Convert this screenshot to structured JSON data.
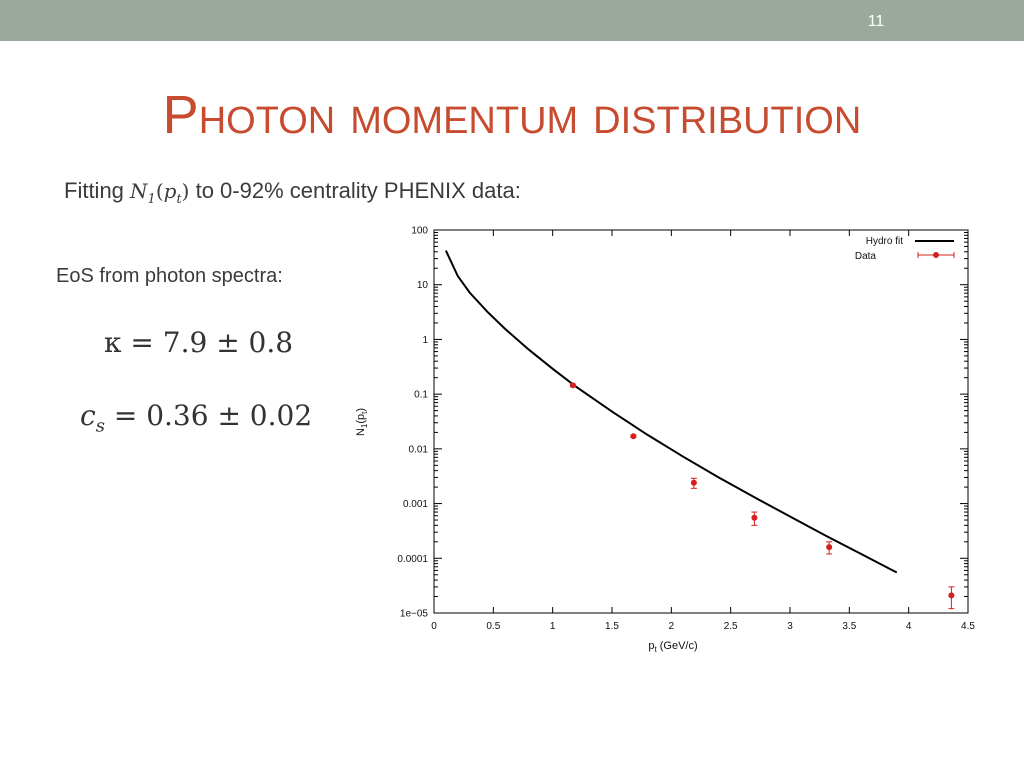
{
  "slide_number": "11",
  "title": "Photon momentum distribution",
  "fit_text_before": "Fitting ",
  "fit_math_N": "N",
  "fit_math_N_sub": "1",
  "fit_math_p": "p",
  "fit_math_p_sub": "t",
  "fit_text_after": " to 0-92% centrality PHENIX data:",
  "eos_label": "EoS from photon spectra:",
  "kappa_eq": "κ = 7.9 ± 0.8",
  "cs_symbol": "c",
  "cs_sub": "s",
  "cs_rest": " = 0.36 ± 0.02",
  "colors": {
    "title": "#c74b2f",
    "topbar": "#9aa99b",
    "data_points": "#d42020",
    "fit_line": "#000000"
  },
  "chart_data": {
    "type": "scatter",
    "log_y": true,
    "xlim": [
      0,
      4.5
    ],
    "ylim": [
      1e-05,
      100
    ],
    "xticks": [
      "0",
      "0.5",
      "1",
      "1.5",
      "2",
      "2.5",
      "3",
      "3.5",
      "4",
      "4.5"
    ],
    "yticks": [
      "100",
      "10",
      "1",
      "0.1",
      "0.01",
      "0.001",
      "0.0001",
      "1e−05"
    ],
    "xlabel": "p",
    "xlabel_sub": "t",
    "xlabel_unit": " (GeV/c)",
    "ylabel": "N",
    "ylabel_sub": "1",
    "ylabel_arg": "(p",
    "ylabel_arg_sub": "t",
    "ylabel_close": ")",
    "legend_position": "top-right",
    "series": [
      {
        "name": "Hydro fit",
        "kind": "line",
        "x": [
          0.1,
          0.2,
          0.3,
          0.45,
          0.6,
          0.8,
          1.0,
          1.2,
          1.5,
          1.8,
          2.1,
          2.4,
          2.7,
          3.0,
          3.3,
          3.6,
          3.9
        ],
        "y": [
          42,
          14.5,
          7.2,
          3.2,
          1.55,
          0.65,
          0.29,
          0.135,
          0.048,
          0.018,
          0.0072,
          0.003,
          0.0013,
          0.00058,
          0.00026,
          0.00012,
          5.5e-05
        ]
      },
      {
        "name": "Data",
        "kind": "points",
        "x": [
          1.17,
          1.68,
          2.19,
          2.7,
          3.33,
          4.36
        ],
        "y": [
          0.145,
          0.017,
          0.0024,
          0.00055,
          0.00016,
          2.1e-05
        ],
        "y_low": [
          0.138,
          0.0162,
          0.0019,
          0.0004,
          0.00012,
          1.2e-05
        ],
        "y_high": [
          0.152,
          0.0178,
          0.0029,
          0.0007,
          0.0002,
          3e-05
        ]
      }
    ]
  }
}
